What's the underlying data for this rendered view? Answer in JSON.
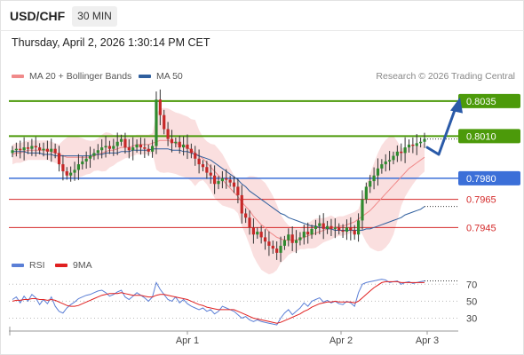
{
  "header": {
    "symbol": "USD/CHF",
    "timeframe": "30 MIN",
    "timestamp": "Thursday, April 2, 2026 1:30:14 PM CET"
  },
  "legend": {
    "ma20_label": "MA 20 + Bollinger Bands",
    "ma20_color": "#f08a8a",
    "ma50_label": "MA 50",
    "ma50_color": "#2f5f9e",
    "credit": "Research © 2026 Trading Central"
  },
  "rsi_legend": {
    "rsi_label": "RSI",
    "rsi_color": "#5b7fd6",
    "ma_label": "9MA",
    "ma_color": "#e02020"
  },
  "chart_data": [
    {
      "type": "candlestick",
      "ylim": [
        0.7925,
        0.8045
      ],
      "x_ticks": [
        "Apr 1",
        "Apr 2",
        "Apr 3"
      ],
      "levels": [
        {
          "label": "0.8035",
          "value": 0.8035,
          "color": "#4c9a0a",
          "style": "resistance"
        },
        {
          "label": "0.8010",
          "value": 0.801,
          "color": "#4c9a0a",
          "style": "resistance"
        },
        {
          "label": "0.7980",
          "value": 0.798,
          "color": "#3b6fd8",
          "style": "pivot"
        },
        {
          "label": "0.7965",
          "value": 0.7965,
          "color": "#d42a2a",
          "style": "support"
        },
        {
          "label": "0.7945",
          "value": 0.7945,
          "color": "#d42a2a",
          "style": "support"
        }
      ],
      "close": [
        0.8,
        0.8001,
        0.8,
        0.8002,
        0.8001,
        0.8003,
        0.8002,
        0.8,
        0.8001,
        0.7999,
        0.8001,
        0.7998,
        0.799,
        0.7985,
        0.7982,
        0.7984,
        0.7986,
        0.799,
        0.7992,
        0.7994,
        0.7996,
        0.7998,
        0.8,
        0.8002,
        0.8003,
        0.8001,
        0.8003,
        0.8006,
        0.8008,
        0.8002,
        0.8,
        0.8002,
        0.8004,
        0.8002,
        0.8001,
        0.7999,
        0.8003,
        0.8036,
        0.8025,
        0.8015,
        0.8008,
        0.8005,
        0.8006,
        0.8002,
        0.8004,
        0.8001,
        0.7998,
        0.7994,
        0.799,
        0.7988,
        0.7984,
        0.7982,
        0.7976,
        0.7978,
        0.798,
        0.7979,
        0.7977,
        0.7974,
        0.7968,
        0.7955,
        0.7952,
        0.7945,
        0.794,
        0.7942,
        0.7938,
        0.7935,
        0.7932,
        0.793,
        0.7927,
        0.7932,
        0.7936,
        0.794,
        0.7934,
        0.7936,
        0.7938,
        0.7942,
        0.794,
        0.7944,
        0.7946,
        0.7948,
        0.7944,
        0.7946,
        0.7944,
        0.7945,
        0.7943,
        0.7942,
        0.7945,
        0.7943,
        0.794,
        0.795,
        0.7965,
        0.7974,
        0.7978,
        0.7982,
        0.7987,
        0.799,
        0.7992,
        0.7993,
        0.7996,
        0.7999,
        0.7998,
        0.8002,
        0.8004,
        0.8003,
        0.8005,
        0.8006,
        0.8008
      ],
      "ma20": [
        0.7997,
        0.7998,
        0.7998,
        0.7999,
        0.8,
        0.8,
        0.8,
        0.8,
        0.8,
        0.8,
        0.7999,
        0.7998,
        0.7997,
        0.7996,
        0.7995,
        0.7995,
        0.7995,
        0.7995,
        0.7995,
        0.7995,
        0.7995,
        0.7996,
        0.7997,
        0.7998,
        0.7999,
        0.8,
        0.8,
        0.8001,
        0.8002,
        0.8002,
        0.8002,
        0.8003,
        0.8004,
        0.8004,
        0.8004,
        0.8004,
        0.8005,
        0.8006,
        0.8007,
        0.8007,
        0.8007,
        0.8006,
        0.8005,
        0.8004,
        0.8003,
        0.8002,
        0.8,
        0.7998,
        0.7996,
        0.7994,
        0.7991,
        0.7988,
        0.7985,
        0.7982,
        0.7979,
        0.7976,
        0.7973,
        0.797,
        0.7967,
        0.7963,
        0.796,
        0.7957,
        0.7953,
        0.795,
        0.7947,
        0.7945,
        0.7942,
        0.794,
        0.7938,
        0.7937,
        0.7936,
        0.7936,
        0.7936,
        0.7936,
        0.7937,
        0.7938,
        0.7939,
        0.794,
        0.7941,
        0.7942,
        0.7943,
        0.7944,
        0.7945,
        0.7945,
        0.7946,
        0.7946,
        0.7947,
        0.7948,
        0.7949,
        0.7951,
        0.7953,
        0.7955,
        0.7957,
        0.796,
        0.7963,
        0.7966,
        0.7969,
        0.7972,
        0.7975,
        0.7978,
        0.7981,
        0.7984,
        0.7987,
        0.7989,
        0.7991,
        0.7993,
        0.7995
      ],
      "ma50": [
        0.7999,
        0.7999,
        0.7999,
        0.7999,
        0.7998,
        0.7998,
        0.7998,
        0.7998,
        0.7997,
        0.7997,
        0.7997,
        0.7996,
        0.7996,
        0.7996,
        0.7996,
        0.7996,
        0.7996,
        0.7996,
        0.7996,
        0.7996,
        0.7996,
        0.7997,
        0.7997,
        0.7997,
        0.7998,
        0.7998,
        0.7998,
        0.7998,
        0.7999,
        0.7999,
        0.7999,
        0.8,
        0.8,
        0.8,
        0.8,
        0.8,
        0.8001,
        0.8001,
        0.8001,
        0.8001,
        0.8001,
        0.8,
        0.8,
        0.8,
        0.7999,
        0.7999,
        0.7998,
        0.7997,
        0.7996,
        0.7995,
        0.7994,
        0.7993,
        0.7991,
        0.7989,
        0.7987,
        0.7985,
        0.7983,
        0.7981,
        0.7979,
        0.7976,
        0.7974,
        0.7971,
        0.7969,
        0.7967,
        0.7965,
        0.7963,
        0.7961,
        0.7959,
        0.7957,
        0.7955,
        0.7954,
        0.7952,
        0.7951,
        0.795,
        0.7949,
        0.7948,
        0.7947,
        0.7946,
        0.7946,
        0.7945,
        0.7945,
        0.7944,
        0.7944,
        0.7943,
        0.7943,
        0.7943,
        0.7943,
        0.7943,
        0.7943,
        0.7943,
        0.7943,
        0.7944,
        0.7944,
        0.7945,
        0.7946,
        0.7947,
        0.7948,
        0.7949,
        0.795,
        0.7951,
        0.7952,
        0.7954,
        0.7955,
        0.7956,
        0.7957,
        0.7958,
        0.796
      ],
      "forecast": [
        0.8002,
        0.7997,
        0.8032
      ]
    },
    {
      "type": "line",
      "title": "RSI",
      "ylim": [
        20,
        85
      ],
      "y_ticks": [
        70,
        50,
        30
      ],
      "series": [
        {
          "name": "RSI",
          "color": "#5b7fd6",
          "values": [
            52,
            55,
            48,
            56,
            50,
            58,
            54,
            46,
            52,
            47,
            55,
            44,
            38,
            36,
            42,
            46,
            49,
            53,
            55,
            57,
            58,
            60,
            62,
            63,
            60,
            56,
            58,
            61,
            63,
            55,
            52,
            56,
            60,
            57,
            54,
            50,
            55,
            72,
            64,
            58,
            52,
            50,
            55,
            48,
            52,
            47,
            44,
            42,
            40,
            42,
            38,
            40,
            35,
            38,
            44,
            42,
            40,
            38,
            34,
            30,
            32,
            28,
            26,
            28,
            26,
            25,
            24,
            23,
            22,
            30,
            36,
            40,
            34,
            38,
            42,
            48,
            44,
            50,
            52,
            54,
            49,
            51,
            48,
            50,
            47,
            46,
            50,
            48,
            44,
            60,
            70,
            72,
            73,
            74,
            75,
            76,
            75,
            72,
            73,
            74,
            70,
            72,
            73,
            71,
            72,
            73,
            74
          ]
        },
        {
          "name": "9MA",
          "color": "#e02020",
          "values": [
            50,
            51,
            51,
            52,
            52,
            53,
            53,
            52,
            52,
            51,
            52,
            51,
            49,
            47,
            45,
            44,
            44,
            45,
            47,
            49,
            51,
            53,
            55,
            57,
            58,
            59,
            59,
            59,
            60,
            59,
            58,
            57,
            57,
            57,
            56,
            55,
            55,
            57,
            58,
            58,
            57,
            56,
            55,
            54,
            53,
            52,
            50,
            48,
            46,
            45,
            43,
            42,
            41,
            40,
            40,
            40,
            40,
            40,
            38,
            36,
            34,
            32,
            30,
            29,
            28,
            27,
            26,
            25,
            24,
            25,
            27,
            29,
            31,
            33,
            35,
            38,
            40,
            43,
            45,
            47,
            48,
            49,
            49,
            50,
            49,
            49,
            49,
            49,
            48,
            50,
            54,
            58,
            62,
            66,
            69,
            72,
            73,
            73,
            73,
            73,
            72,
            72,
            72,
            72,
            72,
            72,
            72
          ]
        }
      ]
    }
  ]
}
